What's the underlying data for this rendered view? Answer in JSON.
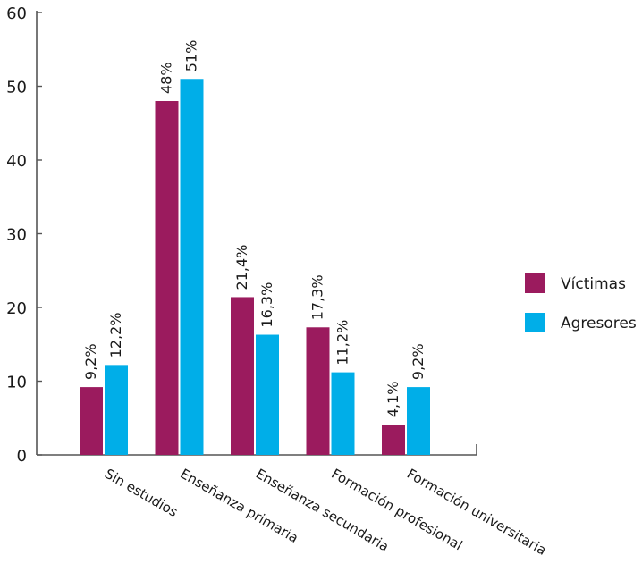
{
  "chart_data": {
    "type": "bar",
    "title": "",
    "xlabel": "",
    "ylabel": "",
    "ylim": [
      0,
      60
    ],
    "yticks": [
      0,
      10,
      20,
      30,
      40,
      50,
      60
    ],
    "categories": [
      "Sin estudios",
      "Enseñanza primaria",
      "Enseñanza secundaria",
      "Formación profesional",
      "Formación universitaria"
    ],
    "series": [
      {
        "name": "Víctimas",
        "color": "#9b1b5e",
        "values": [
          9.2,
          48,
          21.4,
          17.3,
          4.1
        ],
        "labels": [
          "9,2%",
          "48%",
          "21,4%",
          "17,3%",
          "4,1%"
        ]
      },
      {
        "name": "Agresores",
        "color": "#00aee8",
        "values": [
          12.2,
          51,
          16.3,
          11.2,
          9.2
        ],
        "labels": [
          "12,2%",
          "51%",
          "16,3%",
          "11,2%",
          "9,2%"
        ]
      }
    ],
    "grid": false,
    "legend": "right"
  }
}
